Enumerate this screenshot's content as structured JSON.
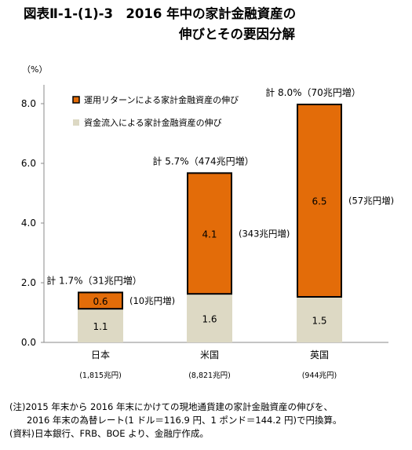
{
  "title_line1": "図表Ⅱ-1-(1)-3　2016 年中の家計金融資産の",
  "title_line2": "伸びとその要因分解",
  "chart_data": {
    "type": "bar",
    "stacked": true,
    "y_unit_label": "（%）",
    "ylim": [
      0,
      8
    ],
    "yticks": [
      "0.0",
      "2.0",
      "4.0",
      "6.0",
      "8.0"
    ],
    "categories": [
      "日本",
      "米国",
      "英国"
    ],
    "category_sublabels": [
      "(1,815兆円)",
      "(8,821兆円)",
      "(944兆円)"
    ],
    "series": [
      {
        "name": "資金流入による家計金融資産の伸び",
        "values": [
          1.1,
          1.6,
          1.5
        ],
        "labels": [
          "1.1",
          "1.6",
          "1.5"
        ],
        "color": "#ddd9c4"
      },
      {
        "name": "運用リターンによる家計金融資産の伸び",
        "values": [
          0.6,
          4.1,
          6.5
        ],
        "labels": [
          "0.6",
          "4.1",
          "6.5"
        ],
        "color": "#e36c09"
      }
    ],
    "totals": [
      "計 1.7%（31兆円増）",
      "計 5.7%（474兆円増）",
      "計 8.0%（70兆円増）"
    ],
    "return_amounts": [
      "(10兆円増)",
      "(343兆円増)",
      "(57兆円増)"
    ],
    "legend": {
      "placement": "top-left",
      "entries": [
        "運用リターンによる家計金融資産の伸び",
        "資金流入による家計金融資産の伸び"
      ]
    },
    "grid": false
  },
  "notes": {
    "line1": "(注)2015 年末から 2016 年末にかけての現地通貨建の家計金融資産の伸びを、",
    "line2": "2016 年末の為替レート(1 ドル＝116.9 円、1 ポンド＝144.2 円)で円換算。",
    "line3": "(資料)日本銀行、FRB、BOE より、金融庁作成。"
  }
}
